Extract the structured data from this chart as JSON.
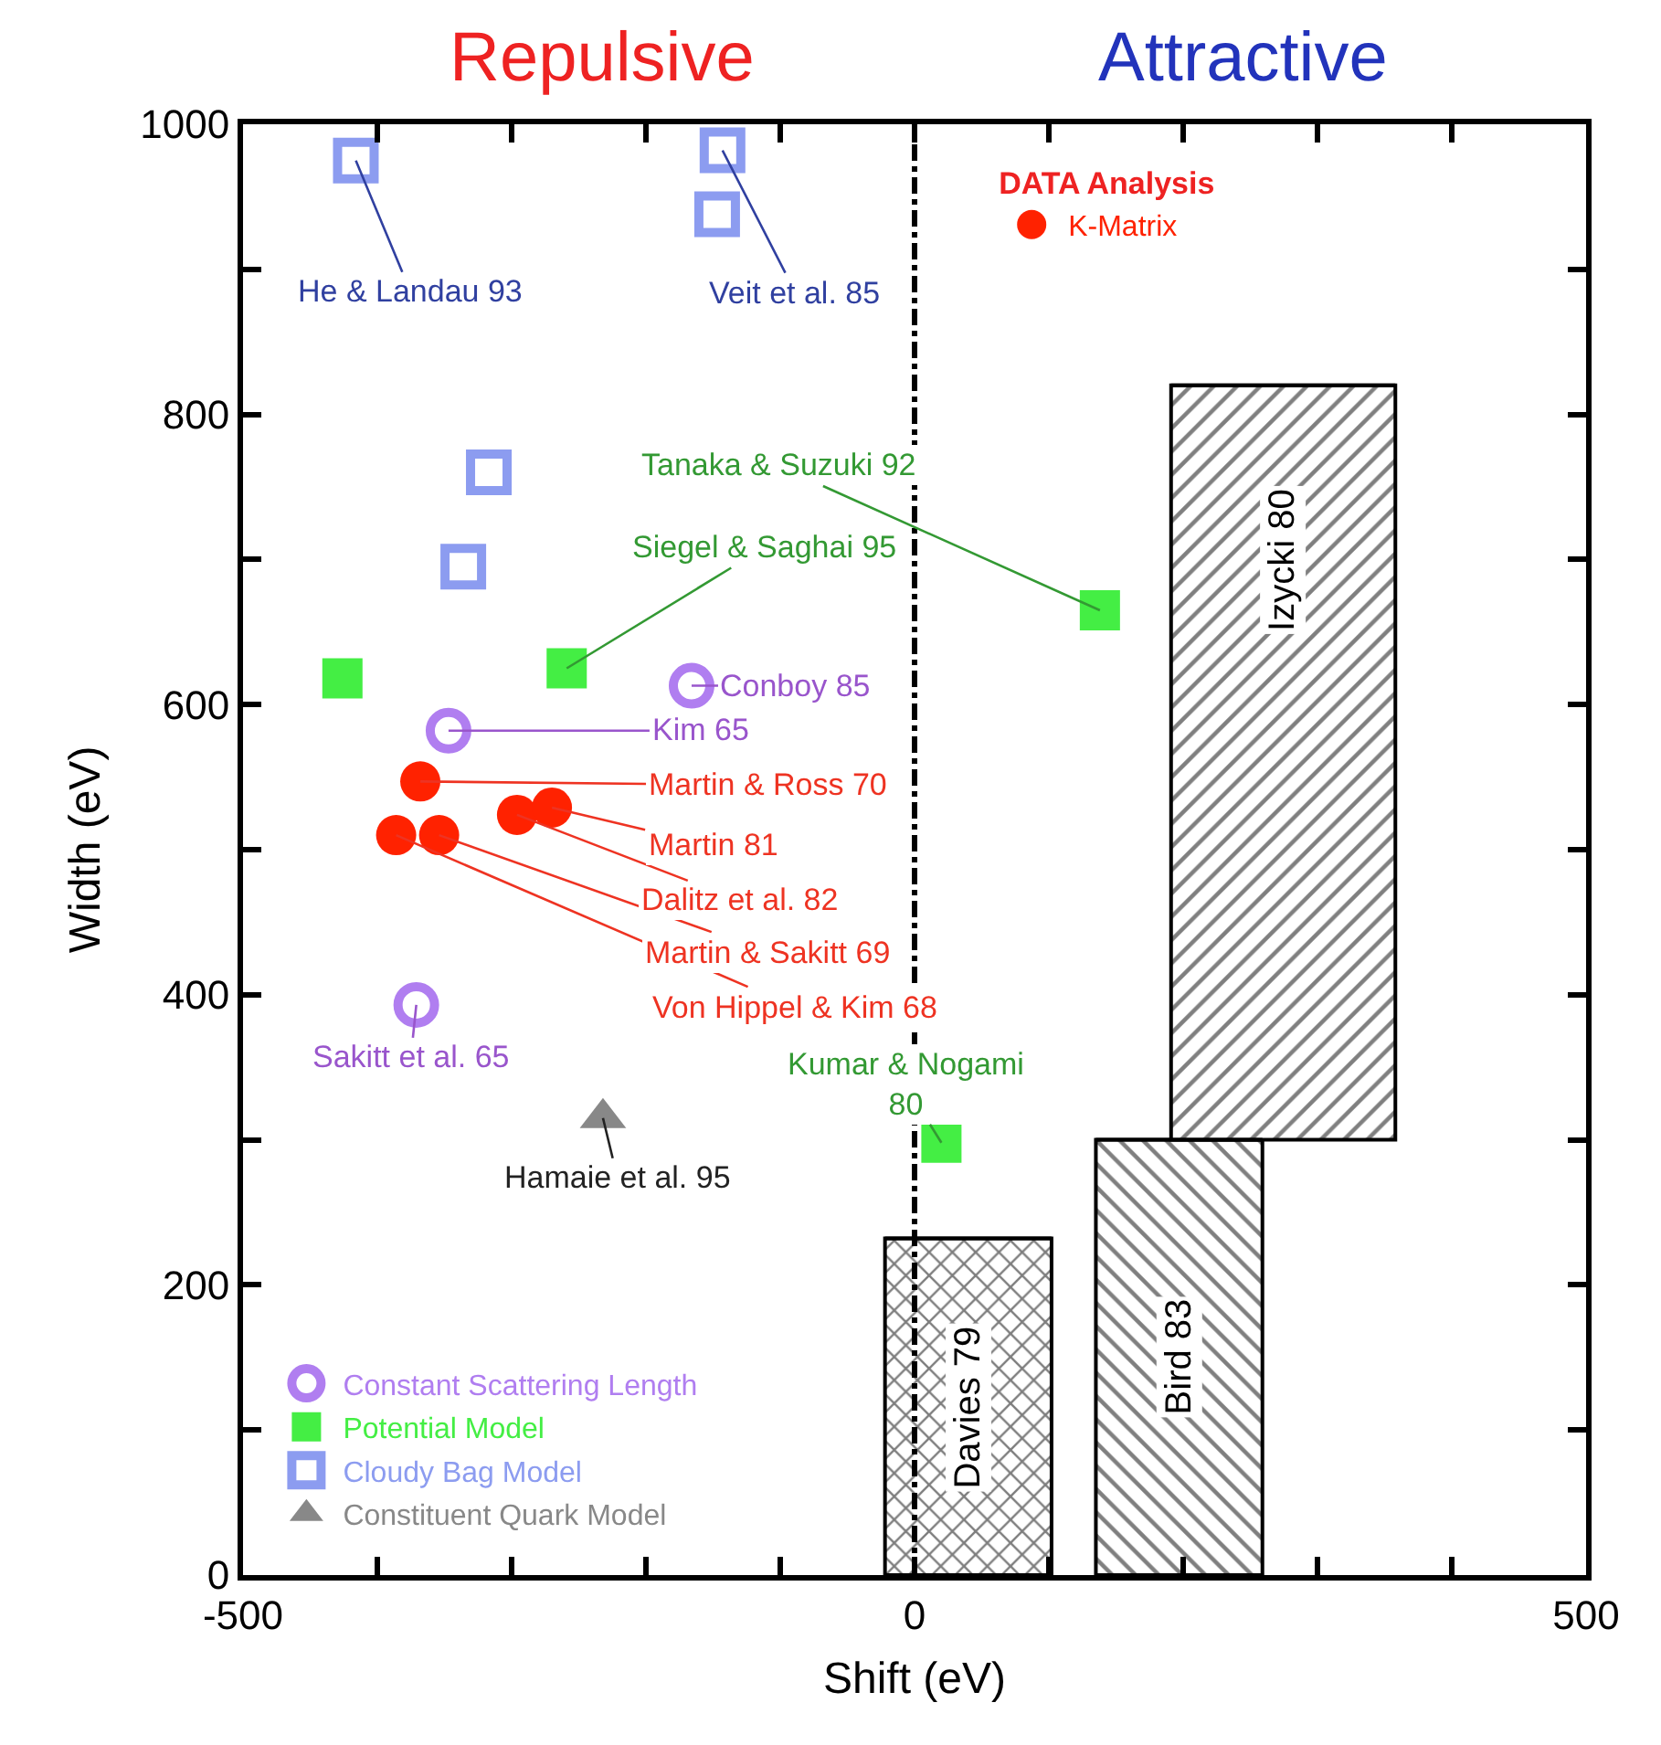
{
  "chart_data": {
    "type": "scatter",
    "xlabel": "Shift (eV)",
    "ylabel": "Width (eV)",
    "xlim": [
      -500,
      500
    ],
    "ylim": [
      0,
      1000
    ],
    "xticks": [
      -500,
      {
        "value": -400,
        "label": null
      },
      {
        "value": -300,
        "label": null
      },
      {
        "value": -200,
        "label": null
      },
      {
        "value": -100,
        "label": null
      },
      0,
      {
        "value": 100,
        "label": null
      },
      {
        "value": 200,
        "label": null
      },
      {
        "value": 300,
        "label": null
      },
      {
        "value": 400,
        "label": null
      },
      500
    ],
    "yticks": [
      0,
      {
        "value": 100,
        "label": null
      },
      200,
      {
        "value": 300,
        "label": null
      },
      400,
      {
        "value": 500,
        "label": null
      },
      600,
      {
        "value": 700,
        "label": null
      },
      800,
      {
        "value": 900,
        "label": null
      },
      1000
    ],
    "legend": "bottom left",
    "legend_title": "DATA Analysis",
    "series": [
      {
        "name": "Constant Scattering Length",
        "color": "#b07ef0",
        "marker": "circle",
        "x": [
          -166,
          -347,
          -371
        ],
        "values": [
          613,
          582,
          393
        ]
      },
      {
        "name": "Potential Model",
        "color": "#44ee44",
        "marker": "square",
        "x": [
          -426,
          -259,
          138,
          20
        ],
        "values": [
          618,
          625,
          665,
          298
        ]
      },
      {
        "name": "Cloudy Bag Model",
        "color": "#8c9cf0",
        "marker": "square",
        "x": [
          -416,
          -143,
          -147,
          -317,
          -336
        ],
        "values": [
          975,
          982,
          938,
          760,
          695
        ]
      },
      {
        "name": "Constituent Quark Model",
        "color": "#888888",
        "marker": "triangle",
        "x": [
          -232
        ],
        "values": [
          315
        ]
      },
      {
        "name": "K-Matrix",
        "color": "#ff2200",
        "marker": "circle",
        "x": [
          -368,
          -386,
          -354,
          -296,
          -270
        ],
        "values": [
          547,
          510,
          510,
          524,
          529
        ]
      },
      {
        "type": "bar",
        "color": "#000000",
        "x": [
          40,
          197,
          274.5
        ],
        "base": [
          0,
          0,
          300
        ],
        "values": [
          232,
          300,
          520
        ],
        "xerrors": [
          [
            -22,
            102
          ],
          [
            135,
            259
          ],
          [
            191,
            358
          ]
        ]
      }
    ],
    "ref_lines": [
      {
        "axis": "x",
        "value": 0,
        "line_style": "dashed",
        "color": "#000000"
      }
    ],
    "annotations": [
      "Repulsive",
      "Attractive",
      {
        "text": "He & Landau 93",
        "x": -416,
        "y": 975
      },
      {
        "text": "Veit et al. 85",
        "x": -143,
        "y": 982
      },
      {
        "text": "Tanaka & Suzuki 92",
        "x": 138,
        "y": 665
      },
      {
        "text": "Siegel & Saghai 95",
        "x": -259,
        "y": 625
      },
      {
        "text": "Conboy 85",
        "x": -166,
        "y": 613
      },
      {
        "text": "Kim 65",
        "x": -347,
        "y": 582
      },
      {
        "text": "Martin & Ross 70",
        "x": -368,
        "y": 547
      },
      {
        "text": "Martin 81",
        "x": -270,
        "y": 529
      },
      {
        "text": "Dalitz et al. 82",
        "x": -296,
        "y": 524
      },
      {
        "text": "Martin & Sakitt 69",
        "x": -354,
        "y": 510
      },
      {
        "text": "Von Hippel & Kim 68",
        "x": -386,
        "y": 510
      },
      {
        "text": "Sakitt et al. 65",
        "x": -371,
        "y": 393
      },
      {
        "text": "Kumar & Nogami\n80",
        "x": 20,
        "y": 298
      },
      {
        "text": "Hamaie et al. 95",
        "x": -232,
        "y": 315
      },
      "Davies 79",
      "Bird 83",
      "Izycki 80"
    ]
  }
}
